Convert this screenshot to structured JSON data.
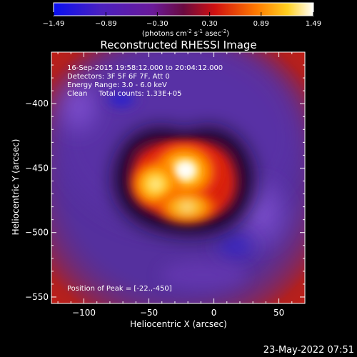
{
  "colorbar": {
    "ticks": [
      "-1.49",
      "-0.89",
      "-0.30",
      "0.30",
      "0.89",
      "1.49"
    ],
    "units_main": "(photons cm",
    "units_exp1": "-2",
    "units_mid": " s",
    "units_exp2": "-1",
    "units_mid2": " asec",
    "units_exp3": "-2",
    "units_end": ")"
  },
  "title": "Reconstructed RHESSI Image",
  "info": {
    "line1": "16-Sep-2015 19:58:12.000 to 20:04:12.000",
    "line2": "Detectors: 3F 5F 6F 7F, Att 0",
    "line3": "Energy Range: 3.0 - 6.0 keV",
    "line4": "Clean     Total counts: 1.33E+05"
  },
  "peak_label": "Position of Peak = [-22.,-450]",
  "footer_date": "23-May-2022 07:51",
  "chart_data": {
    "type": "heatmap",
    "title": "Reconstructed RHESSI Image",
    "xlabel": "Heliocentric X (arcsec)",
    "ylabel": "Heliocentric Y (arcsec)",
    "xlim": [
      -125,
      70
    ],
    "ylim": [
      -555,
      -360
    ],
    "xticks": [
      -100,
      -50,
      0,
      50
    ],
    "yticks": [
      -550,
      -500,
      -450,
      -400
    ],
    "xtick_labels": [
      "−100",
      "−50",
      "0",
      "50"
    ],
    "ytick_labels": [
      "−550",
      "−500",
      "−450",
      "−400"
    ],
    "colorbar_range": [
      -1.49,
      1.49
    ],
    "colormap": "blue-purple-red-yellow-white",
    "peak": [
      -22,
      -450
    ],
    "colors": {
      "blue": "#1010e8",
      "purple": "#5a2aa6",
      "red": "#e02010",
      "orange": "#ff9800",
      "yellow": "#ffe020",
      "white": "#ffffff"
    }
  }
}
